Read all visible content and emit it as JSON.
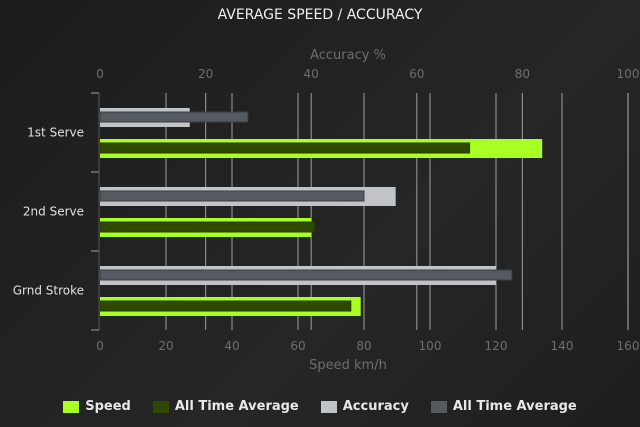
{
  "chart_data": {
    "type": "bar",
    "orientation": "horizontal",
    "title": "AVERAGE SPEED / ACCURACY",
    "categories": [
      "1st Serve",
      "2nd Serve",
      "Grnd Stroke"
    ],
    "speed_axis": {
      "label": "Speed km/h",
      "range": [
        0,
        160
      ],
      "ticks": [
        0,
        20,
        40,
        60,
        80,
        100,
        120,
        140,
        160
      ],
      "position": "bottom"
    },
    "accuracy_axis": {
      "label": "Accuracy %",
      "range": [
        0,
        100
      ],
      "ticks": [
        0,
        20,
        40,
        60,
        80,
        100
      ],
      "position": "top"
    },
    "grid": true,
    "legend_position": "bottom",
    "series": [
      {
        "name": "Speed",
        "axis": "speed",
        "color": "#aaff22",
        "values": [
          134,
          64,
          79
        ]
      },
      {
        "name": "All Time Average",
        "axis": "speed",
        "color": "#2f4a00",
        "values": [
          112,
          65,
          76
        ]
      },
      {
        "name": "Accuracy",
        "axis": "accuracy",
        "color": "#c0c4c6",
        "values": [
          17,
          56,
          75
        ]
      },
      {
        "name": "All Time Average",
        "axis": "accuracy",
        "color": "#545a60",
        "values": [
          28,
          50,
          78
        ]
      }
    ]
  }
}
